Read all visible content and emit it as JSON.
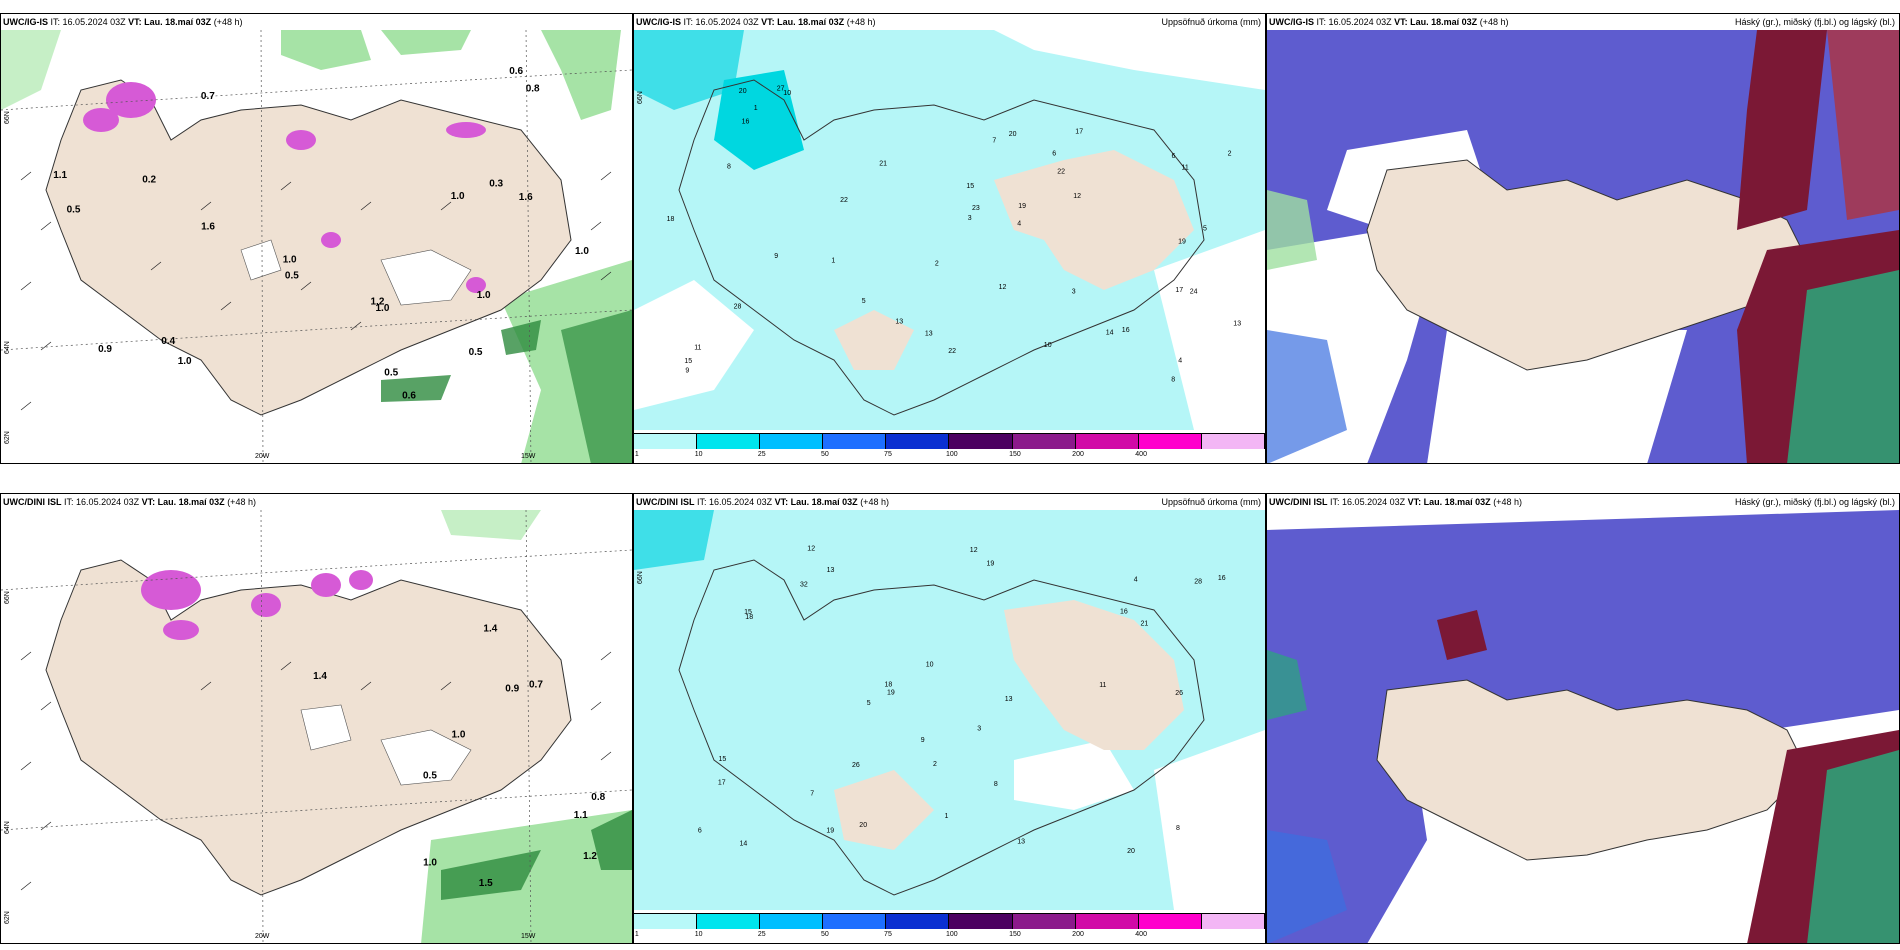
{
  "panels": [
    {
      "id": "ig-wind",
      "model": "UWC/IG-IS",
      "it_label": "IT:",
      "it_value": "16.05.2024 03Z",
      "vt_label": "VT:",
      "vt_value": "Lau. 18.maí 03Z",
      "lead": "(+48 h)",
      "right_title": "",
      "lat_labels": [
        "66N",
        "64N",
        "62N"
      ],
      "lon_labels": [
        "20W",
        "15W"
      ],
      "value_labels": [
        "0.6",
        "0.7",
        "0.4",
        "0.2",
        "0.3",
        "0.5",
        "1.0",
        "1.6",
        "0.5",
        "1.0",
        "0.9",
        "1.1",
        "1.0",
        "1.2",
        "1.0",
        "0.6",
        "0.5",
        "0.8",
        "1.0",
        "1.6",
        "0.5",
        "1.0"
      ]
    },
    {
      "id": "ig-precip",
      "model": "UWC/IG-IS",
      "it_label": "IT:",
      "it_value": "16.05.2024 03Z",
      "vt_label": "VT:",
      "vt_value": "Lau. 18.maí 03Z",
      "lead": "(+48 h)",
      "right_title": "Uppsöfnuð úrkoma (mm)",
      "lat_labels": [
        "66N"
      ],
      "point_values": [
        "28",
        "19",
        "17",
        "13",
        "20",
        "16",
        "15",
        "22",
        "24",
        "11",
        "10",
        "12",
        "19",
        "22",
        "20",
        "13",
        "8",
        "6",
        "4",
        "3",
        "9",
        "17",
        "22",
        "21",
        "27",
        "18",
        "14",
        "10",
        "16",
        "12",
        "13",
        "15",
        "23",
        "11",
        "9",
        "7",
        "5",
        "2",
        "1",
        "8",
        "6",
        "4",
        "3",
        "2",
        "1",
        "5"
      ]
    },
    {
      "id": "ig-cloud",
      "model": "UWC/IG-IS",
      "it_label": "IT:",
      "it_value": "16.05.2024 03Z",
      "vt_label": "VT:",
      "vt_value": "Lau. 18.maí 03Z",
      "lead": "(+48 h)",
      "right_title": "Háský (gr.), miðský (fj.bl.) og lágský (bl.)"
    },
    {
      "id": "dini-wind",
      "model": "UWC/DINI ISL",
      "it_label": "IT:",
      "it_value": "16.05.2024 03Z",
      "vt_label": "VT:",
      "vt_value": "Lau. 18.maí 03Z",
      "lead": "(+48 h)",
      "right_title": "",
      "lat_labels": [
        "66N",
        "64N",
        "62N"
      ],
      "lon_labels": [
        "20W",
        "15W"
      ],
      "value_labels": [
        "0.5",
        "0.8",
        "0.9",
        "1.1",
        "1.0",
        "1.4",
        "0.7",
        "1.4",
        "1.2",
        "1.5",
        "1.0"
      ]
    },
    {
      "id": "dini-precip",
      "model": "UWC/DINI ISL",
      "it_label": "IT:",
      "it_value": "16.05.2024 03Z",
      "vt_label": "VT:",
      "vt_value": "Lau. 18.maí 03Z",
      "lead": "(+48 h)",
      "right_title": "Uppsöfnuð úrkoma (mm)",
      "lat_labels": [
        "66N"
      ],
      "point_values": [
        "32",
        "26",
        "19",
        "20",
        "17",
        "18",
        "13",
        "19",
        "26",
        "28",
        "16",
        "13",
        "15",
        "16",
        "20",
        "19",
        "14",
        "21",
        "12",
        "13",
        "15",
        "18",
        "11",
        "10",
        "9",
        "8",
        "7",
        "6",
        "5",
        "4",
        "3",
        "2",
        "1",
        "12",
        "8"
      ]
    },
    {
      "id": "dini-cloud",
      "model": "UWC/DINI ISL",
      "it_label": "IT:",
      "it_value": "16.05.2024 03Z",
      "vt_label": "VT:",
      "vt_value": "Lau. 18.maí 03Z",
      "lead": "(+48 h)",
      "right_title": "Háský (gr.), miðský (fj.bl.) og lágský (bl.)"
    }
  ],
  "precip_scale": {
    "labels": [
      "1",
      "10",
      "25",
      "50",
      "75",
      "100",
      "150",
      "200",
      "400"
    ],
    "colors": [
      "#b8f9f9",
      "#00e5ee",
      "#00bfff",
      "#1e6fff",
      "#0b2fd1",
      "#4b0060",
      "#8b1a8b",
      "#d10aa7",
      "#ff00cc",
      "#f3b6f5"
    ]
  },
  "colors": {
    "land": "#efe1d3",
    "precip_light": "#b5f6f7",
    "precip_mid": "#00e5ee",
    "high_cloud_green": "#2aa87a",
    "mid_cloud_maroon": "#7b1835",
    "low_cloud_blue": "#5e5ccf",
    "wind_green": "#2e8b3e",
    "convective_magenta": "#d65ad6"
  }
}
